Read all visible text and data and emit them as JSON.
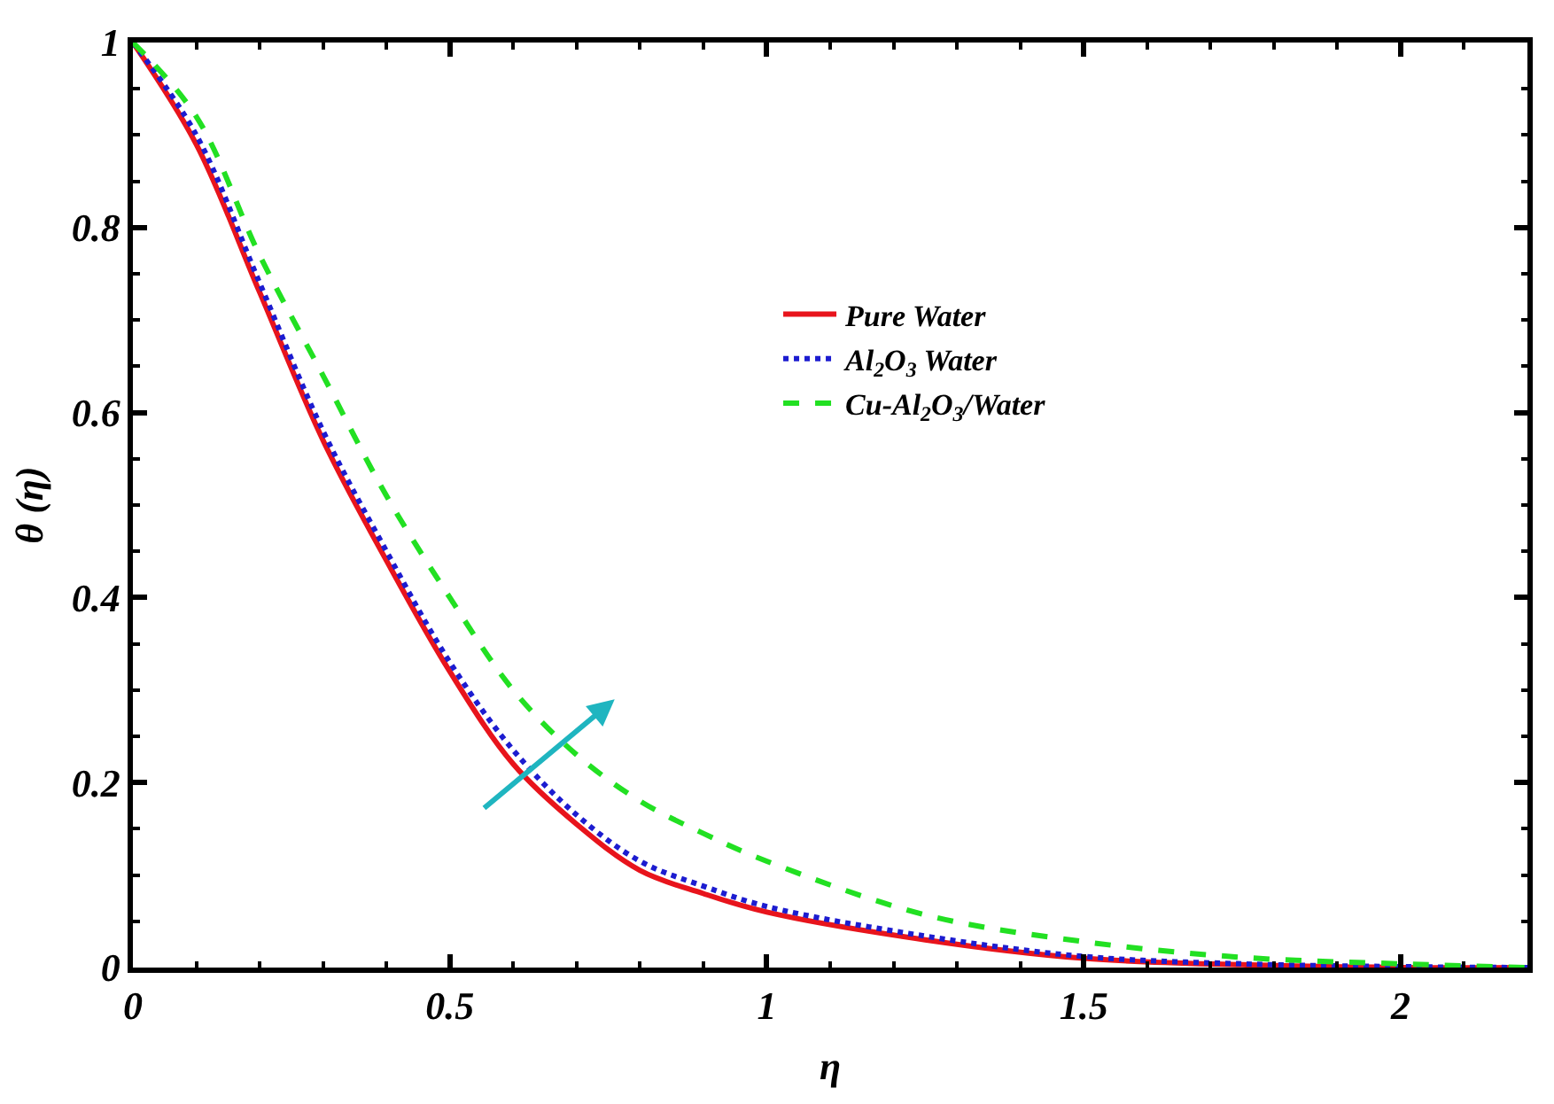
{
  "chart_data": {
    "type": "line",
    "xlabel": "η",
    "ylabel": "θ (η)",
    "x": [
      0,
      0.1,
      0.2,
      0.3,
      0.4,
      0.5,
      0.6,
      0.7,
      0.8,
      0.9,
      1,
      1.25,
      1.5,
      1.75,
      2,
      2.2
    ],
    "series": [
      {
        "name": "Pure Water",
        "color": "#e8141c",
        "line_style": "solid",
        "values": [
          1,
          0.89,
          0.73,
          0.57,
          0.44,
          0.32,
          0.22,
          0.155,
          0.105,
          0.08,
          0.06,
          0.03,
          0.01,
          0.003,
          0,
          0
        ]
      },
      {
        "name": "Al$_{2}$O$_{3}$ Water",
        "color": "#1c1cd0",
        "line_style": "dotted",
        "values": [
          1,
          0.9,
          0.74,
          0.58,
          0.45,
          0.33,
          0.235,
          0.165,
          0.115,
          0.088,
          0.066,
          0.034,
          0.012,
          0.004,
          0.001,
          0
        ]
      },
      {
        "name": "Cu-Al$_{2}$O$_{3}$/Water",
        "color": "#22e022",
        "line_style": "dashed",
        "values": [
          1,
          0.92,
          0.77,
          0.64,
          0.51,
          0.4,
          0.3,
          0.23,
          0.18,
          0.145,
          0.115,
          0.057,
          0.028,
          0.011,
          0.004,
          0
        ]
      }
    ],
    "xlim": [
      0,
      2.2
    ],
    "xticks": [
      0,
      0.5,
      1,
      1.5,
      2
    ],
    "ylim": [
      0,
      1
    ],
    "yticks": [
      0,
      0.2,
      0.4,
      0.6,
      0.8,
      1
    ],
    "legend": "right",
    "marker": "none"
  }
}
